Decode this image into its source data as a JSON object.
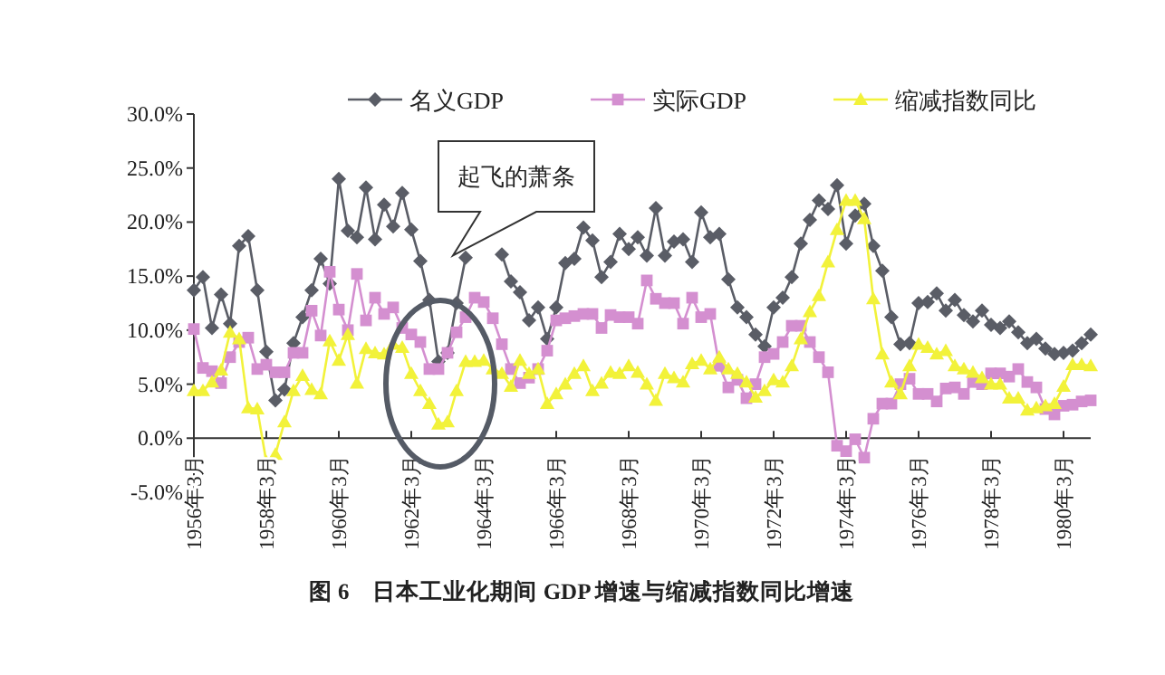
{
  "chart_data": {
    "type": "line",
    "title": "图 6　日本工业化期间 GDP 增速与缩减指数同比增速",
    "categories": [
      "1956年3月",
      null,
      null,
      null,
      null,
      null,
      null,
      null,
      "1958年3月",
      null,
      null,
      null,
      null,
      null,
      null,
      null,
      "1960年3月",
      null,
      null,
      null,
      null,
      null,
      null,
      null,
      "1962年3月",
      null,
      null,
      null,
      null,
      null,
      null,
      null,
      "1964年3月",
      null,
      null,
      null,
      null,
      null,
      null,
      null,
      "1966年3月",
      null,
      null,
      null,
      null,
      null,
      null,
      null,
      "1968年3月",
      null,
      null,
      null,
      null,
      null,
      null,
      null,
      "1970年3月",
      null,
      null,
      null,
      null,
      null,
      null,
      null,
      "1972年3月",
      null,
      null,
      null,
      null,
      null,
      null,
      null,
      "1974年3月",
      null,
      null,
      null,
      null,
      null,
      null,
      null,
      "1976年3月",
      null,
      null,
      null,
      null,
      null,
      null,
      null,
      "1978年3月",
      null,
      null,
      null,
      null,
      null,
      null,
      null,
      "1980年3月",
      null,
      null,
      null
    ],
    "series": [
      {
        "name": "名义GDP",
        "color": "#5a5d66",
        "marker": "diamond",
        "values": [
          13.7,
          14.9,
          10.2,
          13.3,
          10.6,
          17.8,
          18.7,
          13.7,
          8.0,
          3.5,
          4.5,
          8.8,
          11.2,
          13.7,
          16.6,
          14.3,
          24.0,
          19.2,
          18.6,
          23.2,
          18.4,
          21.6,
          19.6,
          22.7,
          19.3,
          16.4,
          12.8,
          7.1,
          7.9,
          12.5,
          16.7,
          null,
          null,
          null,
          17.0,
          14.5,
          13.5,
          10.9,
          12.1,
          9.2,
          12.1,
          16.2,
          16.6,
          19.5,
          18.3,
          14.9,
          16.3,
          18.9,
          17.5,
          18.6,
          16.9,
          21.3,
          16.9,
          18.2,
          18.4,
          16.3,
          20.9,
          18.6,
          18.9,
          14.7,
          12.1,
          11.2,
          9.6,
          8.5,
          12.1,
          13.0,
          14.9,
          18.0,
          20.2,
          22.0,
          21.2,
          23.4,
          18.0,
          20.6,
          21.7,
          17.8,
          15.5,
          11.2,
          8.7,
          8.8,
          12.5,
          12.6,
          13.4,
          11.8,
          12.8,
          11.4,
          10.8,
          11.8,
          10.5,
          10.2,
          10.8,
          9.8,
          8.8,
          9.2,
          8.3,
          7.8,
          7.9,
          8.1,
          8.8,
          9.6
        ]
      },
      {
        "name": "实际GDP",
        "color": "#d48fd0",
        "marker": "square",
        "values": [
          10.1,
          6.5,
          6.2,
          5.1,
          7.5,
          8.9,
          9.3,
          6.4,
          6.8,
          6.1,
          6.1,
          7.9,
          7.9,
          11.8,
          9.5,
          15.4,
          11.9,
          10.0,
          15.2,
          10.9,
          13.0,
          11.5,
          12.1,
          10.2,
          9.6,
          8.9,
          6.4,
          6.4,
          7.9,
          9.8,
          11.2,
          13.0,
          12.6,
          11.1,
          8.7,
          6.4,
          5.1,
          5.6,
          6.4,
          8.1,
          10.9,
          11.1,
          11.3,
          11.5,
          11.5,
          10.2,
          11.4,
          11.2,
          11.2,
          10.6,
          14.6,
          12.9,
          12.5,
          12.5,
          10.6,
          13.0,
          11.2,
          11.5,
          6.7,
          4.7,
          5.4,
          3.7,
          5.0,
          7.5,
          7.8,
          8.9,
          10.4,
          10.4,
          8.9,
          7.5,
          6.1,
          -0.7,
          -1.2,
          -0.1,
          -1.8,
          1.8,
          3.2,
          3.2,
          5.0,
          5.5,
          4.1,
          4.1,
          3.4,
          4.6,
          4.7,
          4.1,
          5.2,
          5.0,
          6.0,
          6.0,
          5.7,
          6.4,
          5.2,
          4.7,
          2.7,
          2.2,
          3.0,
          3.1,
          3.4,
          3.5
        ]
      },
      {
        "name": "缩减指数同比",
        "color": "#f2f23a",
        "marker": "triangle",
        "values": [
          4.4,
          4.4,
          5.2,
          6.3,
          9.8,
          9.2,
          2.8,
          2.7,
          -2.2,
          -1.5,
          1.5,
          4.4,
          5.8,
          4.5,
          4.1,
          9.0,
          7.2,
          9.6,
          5.1,
          8.3,
          7.9,
          7.8,
          8.7,
          8.4,
          6.0,
          4.4,
          3.2,
          1.3,
          1.5,
          4.4,
          7.1,
          7.1,
          7.2,
          6.4,
          6.0,
          4.8,
          7.2,
          6.0,
          6.4,
          3.2,
          4.1,
          5.0,
          6.0,
          6.7,
          4.4,
          5.1,
          6.1,
          6.0,
          6.7,
          6.1,
          5.0,
          3.5,
          6.0,
          5.6,
          5.2,
          6.9,
          7.2,
          6.4,
          7.5,
          6.4,
          6.0,
          5.2,
          3.8,
          4.4,
          5.4,
          5.2,
          6.7,
          9.2,
          11.7,
          13.2,
          16.3,
          19.3,
          22.0,
          22.0,
          20.3,
          12.9,
          7.8,
          5.2,
          4.1,
          6.7,
          8.7,
          8.4,
          7.8,
          8.1,
          6.7,
          6.4,
          6.1,
          5.6,
          5.0,
          5.0,
          3.7,
          3.7,
          2.6,
          2.8,
          3.0,
          3.2,
          4.8,
          6.8,
          6.8,
          6.7
        ]
      }
    ],
    "ylim": [
      -5,
      30
    ],
    "yticks": [
      {
        "value": -5,
        "label": "-5.0%"
      },
      {
        "value": 0,
        "label": "0.0%"
      },
      {
        "value": 5,
        "label": "5.0%"
      },
      {
        "value": 10,
        "label": "10.0%"
      },
      {
        "value": 15,
        "label": "15.0%"
      },
      {
        "value": 20,
        "label": "20.0%"
      },
      {
        "value": 25,
        "label": "25.0%"
      },
      {
        "value": 30,
        "label": "30.0%"
      }
    ],
    "grid": false,
    "legend": "top",
    "annotations": [
      {
        "text": "起飞的萧条",
        "y": 16.9
      }
    ]
  }
}
